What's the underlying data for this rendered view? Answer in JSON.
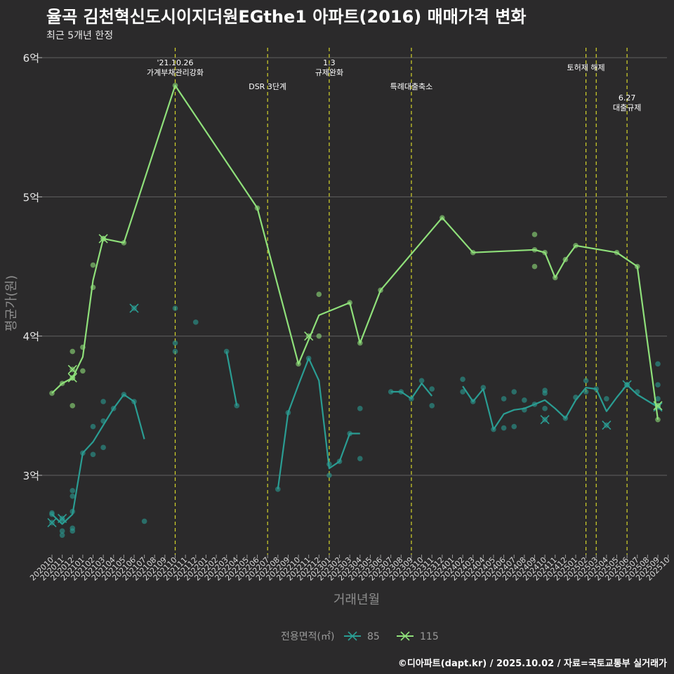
{
  "title": "율곡 김천혁신도시이지더원EGthe1 아파트(2016) 매매가격 변화",
  "subtitle": "최근 5개년 한정",
  "credit": "©디아파트(dapt.kr) / 2025.10.02 / 자료=국토교통부 실거래가",
  "chart_data": {
    "type": "line",
    "xlabel": "거래년월",
    "ylabel": "평균가(원)",
    "x_ticks": [
      "202010",
      "202011",
      "202012",
      "202101",
      "202102",
      "202103",
      "202104",
      "202105",
      "202106",
      "202107",
      "202108",
      "202109",
      "202110",
      "202111",
      "202112",
      "202201",
      "202202",
      "202203",
      "202204",
      "202205",
      "202206",
      "202207",
      "202208",
      "202209",
      "202210",
      "202211",
      "202212",
      "202301",
      "202302",
      "202303",
      "202304",
      "202305",
      "202306",
      "202307",
      "202308",
      "202309",
      "202310",
      "202311",
      "202312",
      "202401",
      "202402",
      "202403",
      "202404",
      "202405",
      "202406",
      "202407",
      "202408",
      "202409",
      "202410",
      "202411",
      "202412",
      "202501",
      "202502",
      "202503",
      "202504",
      "202505",
      "202506",
      "202507",
      "202508",
      "202509",
      "202510"
    ],
    "y_ticks": [
      {
        "value": 3.0,
        "label": "3억"
      },
      {
        "value": 4.0,
        "label": "4억"
      },
      {
        "value": 5.0,
        "label": "5억"
      },
      {
        "value": 6.0,
        "label": "6억"
      }
    ],
    "ylim": [
      2.45,
      6.1
    ],
    "grid": "horizontal",
    "legend": {
      "title": "전용면적(㎡)",
      "position": "bottom",
      "items": [
        "85",
        "115"
      ]
    },
    "colors": {
      "85": "#2a9d93",
      "115": "#8fe07a",
      "vline": "#d4d42a",
      "grid": "#606060",
      "background": "#2b2a2b"
    },
    "events": [
      {
        "date": "202110",
        "label": "'21.10.26\n가계부채관리강화",
        "row": 0
      },
      {
        "date": "202207",
        "label": "DSR 3단계",
        "row": 2
      },
      {
        "date": "202301",
        "label": "1.3\n규제완화",
        "row": 0
      },
      {
        "date": "202309",
        "label": "특례대출축소",
        "row": 2
      },
      {
        "date": "202502",
        "label": "토허제 해제",
        "row": 1
      },
      {
        "date": "202503",
        "label": "",
        "row": 1
      },
      {
        "date": "202506",
        "label": "6.27\n대출규제",
        "row": 3
      }
    ],
    "series": [
      {
        "name": "85",
        "line": [
          [
            [
              0,
              2.72
            ],
            [
              1,
              2.65
            ],
            [
              2,
              2.72
            ],
            [
              3,
              3.16
            ],
            [
              4,
              3.24
            ],
            [
              5,
              3.36
            ],
            [
              6,
              3.48
            ],
            [
              7,
              3.58
            ],
            [
              8,
              3.53
            ],
            [
              9,
              3.26
            ]
          ],
          [
            [
              17,
              3.89
            ],
            [
              18,
              3.5
            ]
          ],
          [
            [
              22,
              2.9
            ],
            [
              23,
              3.45
            ],
            [
              24,
              3.65
            ],
            [
              25,
              3.84
            ],
            [
              26,
              3.68
            ],
            [
              27,
              3.05
            ],
            [
              28,
              3.1
            ],
            [
              29,
              3.3
            ],
            [
              30,
              3.3
            ]
          ],
          [
            [
              33,
              3.6
            ],
            [
              34,
              3.6
            ],
            [
              35,
              3.55
            ],
            [
              36,
              3.66
            ],
            [
              37,
              3.57
            ]
          ],
          [
            [
              40,
              3.64
            ],
            [
              41,
              3.53
            ],
            [
              42,
              3.62
            ],
            [
              43,
              3.33
            ],
            [
              44,
              3.44
            ],
            [
              45,
              3.47
            ],
            [
              46,
              3.48
            ],
            [
              47,
              3.51
            ],
            [
              48,
              3.54
            ],
            [
              49,
              3.48
            ],
            [
              50,
              3.41
            ],
            [
              51,
              3.54
            ],
            [
              52,
              3.63
            ],
            [
              53,
              3.62
            ],
            [
              54,
              3.46
            ],
            [
              55,
              3.56
            ],
            [
              56,
              3.65
            ],
            [
              57,
              3.58
            ],
            [
              59,
              3.49
            ]
          ]
        ],
        "points": [
          [
            0,
            2.72
          ],
          [
            0,
            2.73
          ],
          [
            1,
            2.6
          ],
          [
            1,
            2.57
          ],
          [
            1,
            2.68
          ],
          [
            2,
            2.89
          ],
          [
            2,
            2.85
          ],
          [
            2,
            2.6
          ],
          [
            2,
            2.62
          ],
          [
            2,
            2.74
          ],
          [
            3,
            3.16
          ],
          [
            4,
            3.35
          ],
          [
            4,
            3.15
          ],
          [
            5,
            3.53
          ],
          [
            5,
            3.39
          ],
          [
            5,
            3.2
          ],
          [
            6,
            3.48
          ],
          [
            7,
            3.58
          ],
          [
            8,
            3.53
          ],
          [
            9,
            2.67
          ],
          [
            12,
            4.2
          ],
          [
            12,
            3.95
          ],
          [
            12,
            3.89
          ],
          [
            14,
            4.1
          ],
          [
            17,
            3.89
          ],
          [
            18,
            3.5
          ],
          [
            22,
            2.9
          ],
          [
            23,
            3.45
          ],
          [
            25,
            3.84
          ],
          [
            27,
            3.0
          ],
          [
            27,
            3.08
          ],
          [
            28,
            3.1
          ],
          [
            29,
            3.3
          ],
          [
            30,
            3.48
          ],
          [
            30,
            3.12
          ],
          [
            33,
            3.6
          ],
          [
            34,
            3.6
          ],
          [
            35,
            3.55
          ],
          [
            36,
            3.68
          ],
          [
            37,
            3.5
          ],
          [
            37,
            3.62
          ],
          [
            40,
            3.69
          ],
          [
            40,
            3.6
          ],
          [
            41,
            3.53
          ],
          [
            42,
            3.63
          ],
          [
            43,
            3.33
          ],
          [
            44,
            3.55
          ],
          [
            44,
            3.34
          ],
          [
            45,
            3.6
          ],
          [
            45,
            3.35
          ],
          [
            46,
            3.54
          ],
          [
            46,
            3.47
          ],
          [
            47,
            3.51
          ],
          [
            48,
            3.59
          ],
          [
            48,
            3.61
          ],
          [
            48,
            3.48
          ],
          [
            50,
            3.41
          ],
          [
            51,
            3.56
          ],
          [
            52,
            3.68
          ],
          [
            52,
            3.6
          ],
          [
            53,
            3.62
          ],
          [
            54,
            3.55
          ],
          [
            56,
            3.65
          ],
          [
            57,
            3.6
          ],
          [
            59,
            3.8
          ],
          [
            59,
            3.65
          ],
          [
            59,
            3.55
          ],
          [
            59,
            3.5
          ]
        ],
        "cancelled": [
          [
            0,
            2.66
          ],
          [
            1,
            2.69
          ],
          [
            8.0,
            4.2
          ],
          [
            48,
            3.4
          ],
          [
            54,
            3.36
          ],
          [
            56,
            3.65
          ],
          [
            59,
            3.49
          ]
        ]
      },
      {
        "name": "115",
        "line": [
          [
            [
              0,
              3.59
            ],
            [
              1,
              3.66
            ],
            [
              2,
              3.7
            ],
            [
              3,
              3.85
            ],
            [
              4,
              4.4
            ],
            [
              5,
              4.7
            ],
            [
              7,
              4.67
            ],
            [
              12,
              5.8
            ],
            [
              20,
              4.92
            ],
            [
              24,
              3.8
            ],
            [
              26,
              4.15
            ],
            [
              29,
              4.24
            ],
            [
              30,
              3.95
            ],
            [
              32,
              4.33
            ],
            [
              38,
              4.85
            ],
            [
              41,
              4.6
            ],
            [
              47,
              4.62
            ],
            [
              48,
              4.6
            ],
            [
              49,
              4.42
            ],
            [
              50,
              4.55
            ],
            [
              51,
              4.65
            ],
            [
              55,
              4.6
            ],
            [
              57,
              4.5
            ],
            [
              59,
              3.4
            ]
          ]
        ],
        "points": [
          [
            0,
            3.59
          ],
          [
            1,
            3.66
          ],
          [
            2,
            3.89
          ],
          [
            2,
            3.5
          ],
          [
            2,
            3.7
          ],
          [
            3,
            3.75
          ],
          [
            3,
            3.92
          ],
          [
            4,
            4.51
          ],
          [
            4,
            4.35
          ],
          [
            5,
            4.7
          ],
          [
            7,
            4.67
          ],
          [
            12,
            5.8
          ],
          [
            20,
            4.92
          ],
          [
            24,
            3.8
          ],
          [
            26,
            4.3
          ],
          [
            26,
            4.0
          ],
          [
            29,
            4.24
          ],
          [
            30,
            3.95
          ],
          [
            32,
            4.33
          ],
          [
            38,
            4.85
          ],
          [
            41,
            4.6
          ],
          [
            47,
            4.73
          ],
          [
            47,
            4.62
          ],
          [
            47,
            4.5
          ],
          [
            48,
            4.6
          ],
          [
            49,
            4.42
          ],
          [
            50,
            4.55
          ],
          [
            51,
            4.65
          ],
          [
            55,
            4.6
          ],
          [
            57,
            4.5
          ],
          [
            59,
            3.4
          ]
        ],
        "cancelled": [
          [
            2,
            3.7
          ],
          [
            2,
            3.76
          ],
          [
            5,
            4.7
          ],
          [
            25,
            4.0
          ],
          [
            59,
            3.5
          ]
        ]
      }
    ]
  }
}
